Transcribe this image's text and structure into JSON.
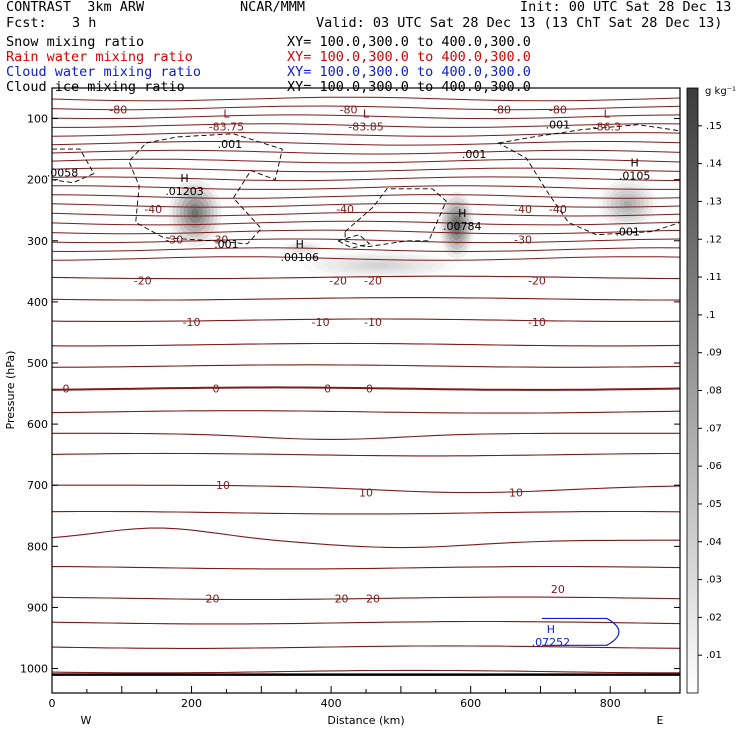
{
  "header": {
    "title": "CONTRAST  3km ARW",
    "center": "NCAR/MMM",
    "init": "Init: 00 UTC Sat 28 Dec 13",
    "fcst_label": "Fcst:",
    "fcst_value": "3 h",
    "valid": "Valid: 03 UTC Sat 28 Dec 13 (13 ChT Sat 28 Dec 13)"
  },
  "fields": [
    {
      "name": "Snow mixing ratio",
      "xy": "XY= 100.0,300.0 to 400.0,300.0",
      "color": "#000000"
    },
    {
      "name": "Rain water mixing ratio",
      "xy": "XY= 100.0,300.0 to 400.0,300.0",
      "color": "#e00000"
    },
    {
      "name": "Cloud water mixing ratio",
      "xy": "XY= 100.0,300.0 to 400.0,300.0",
      "color": "#1020d0"
    },
    {
      "name": "Cloud ice mixing ratio",
      "xy": "XY= 100.0,300.0 to 400.0,300.0",
      "color": "#000000"
    }
  ],
  "chart_data": {
    "type": "contour",
    "xlabel": "Distance (km)",
    "ylabel": "Pressure (hPa)",
    "xlim": [
      0,
      900
    ],
    "ylim": [
      1040,
      50
    ],
    "x_ticks": [
      0,
      200,
      400,
      600,
      800
    ],
    "y_ticks": [
      100,
      200,
      300,
      400,
      500,
      600,
      700,
      800,
      900,
      1000
    ],
    "x_end_labels": {
      "left": "W",
      "right": "E"
    },
    "colorbar": {
      "unit": "g kg⁻¹",
      "ticks": [
        ".01",
        ".02",
        ".03",
        ".04",
        ".05",
        ".06",
        ".07",
        ".08",
        ".09",
        ".1",
        ".11",
        ".12",
        ".13",
        ".14",
        ".15"
      ]
    },
    "temperature_contours": [
      {
        "value": -80,
        "labels": [
          {
            "text": "-80",
            "x": 95,
            "p": 85
          },
          {
            "text": "-80",
            "x": 425,
            "p": 85
          },
          {
            "text": "-80",
            "x": 645,
            "p": 85
          },
          {
            "text": "-80",
            "x": 725,
            "p": 85
          }
        ]
      },
      {
        "value": -40,
        "labels": [
          {
            "text": "-40",
            "x": 145,
            "p": 248
          },
          {
            "text": "-40",
            "x": 420,
            "p": 248
          },
          {
            "text": "-40",
            "x": 675,
            "p": 248
          },
          {
            "text": "-40",
            "x": 725,
            "p": 248
          }
        ]
      },
      {
        "value": -30,
        "labels": [
          {
            "text": "-30",
            "x": 175,
            "p": 298
          },
          {
            "text": "-30",
            "x": 240,
            "p": 298
          },
          {
            "text": "-30",
            "x": 675,
            "p": 298
          }
        ]
      },
      {
        "value": -20,
        "labels": [
          {
            "text": "-20",
            "x": 130,
            "p": 365
          },
          {
            "text": "-20",
            "x": 410,
            "p": 365
          },
          {
            "text": "-20",
            "x": 460,
            "p": 365
          },
          {
            "text": "-20",
            "x": 695,
            "p": 365
          }
        ]
      },
      {
        "value": -10,
        "labels": [
          {
            "text": "-10",
            "x": 200,
            "p": 433
          },
          {
            "text": "-10",
            "x": 385,
            "p": 433
          },
          {
            "text": "-10",
            "x": 460,
            "p": 433
          },
          {
            "text": "-10",
            "x": 695,
            "p": 433
          }
        ]
      },
      {
        "value": 0,
        "labels": [
          {
            "text": "0",
            "x": 20,
            "p": 542
          },
          {
            "text": "0",
            "x": 235,
            "p": 542
          },
          {
            "text": "0",
            "x": 395,
            "p": 542
          },
          {
            "text": "0",
            "x": 455,
            "p": 542
          }
        ]
      },
      {
        "value": 10,
        "labels": [
          {
            "text": "10",
            "x": 245,
            "p": 700
          },
          {
            "text": "10",
            "x": 450,
            "p": 712
          },
          {
            "text": "10",
            "x": 665,
            "p": 712
          }
        ]
      },
      {
        "value": 20,
        "labels": [
          {
            "text": "20",
            "x": 230,
            "p": 885
          },
          {
            "text": "20",
            "x": 415,
            "p": 885
          },
          {
            "text": "20",
            "x": 460,
            "p": 885
          },
          {
            "text": "20",
            "x": 725,
            "p": 870
          }
        ]
      }
    ],
    "extrema": [
      {
        "kind": "L",
        "value": "-83.75",
        "x": 250,
        "p": 105
      },
      {
        "kind": "L",
        "value": "-83.85",
        "x": 450,
        "p": 105
      },
      {
        "kind": "L",
        "value": "-86.3",
        "x": 795,
        "p": 105
      },
      {
        "kind": "H",
        "value": ".01203",
        "x": 190,
        "p": 210
      },
      {
        "kind": "H",
        "value": ".00784",
        "x": 588,
        "p": 268
      },
      {
        "kind": "H",
        "value": ".0105",
        "x": 835,
        "p": 185
      },
      {
        "kind": "H",
        "value": ".00106",
        "x": 355,
        "p": 318
      },
      {
        "kind": "H",
        "value": ".07252",
        "x": 715,
        "p": 948
      }
    ],
    "ice_contour_labels": [
      {
        "text": ".001",
        "x": 255,
        "p": 142
      },
      {
        "text": ".001",
        "x": 250,
        "p": 305
      },
      {
        "text": ".001",
        "x": 605,
        "p": 158
      },
      {
        "text": ".001",
        "x": 725,
        "p": 110
      },
      {
        "text": ".001",
        "x": 825,
        "p": 285
      },
      {
        "text": ".0058",
        "x": 15,
        "p": 188
      }
    ],
    "snow_shading": [
      {
        "x": 205,
        "p": 255,
        "rx": 38,
        "rp": 55,
        "max": 0.12
      },
      {
        "x": 580,
        "p": 275,
        "rx": 25,
        "rp": 55,
        "max": 0.14
      },
      {
        "x": 825,
        "p": 240,
        "rx": 42,
        "rp": 40,
        "max": 0.07
      },
      {
        "x": 470,
        "p": 340,
        "rx": 110,
        "rp": 22,
        "max": 0.035
      },
      {
        "x": 360,
        "p": 312,
        "rx": 30,
        "rp": 12,
        "max": 0.03
      }
    ]
  }
}
